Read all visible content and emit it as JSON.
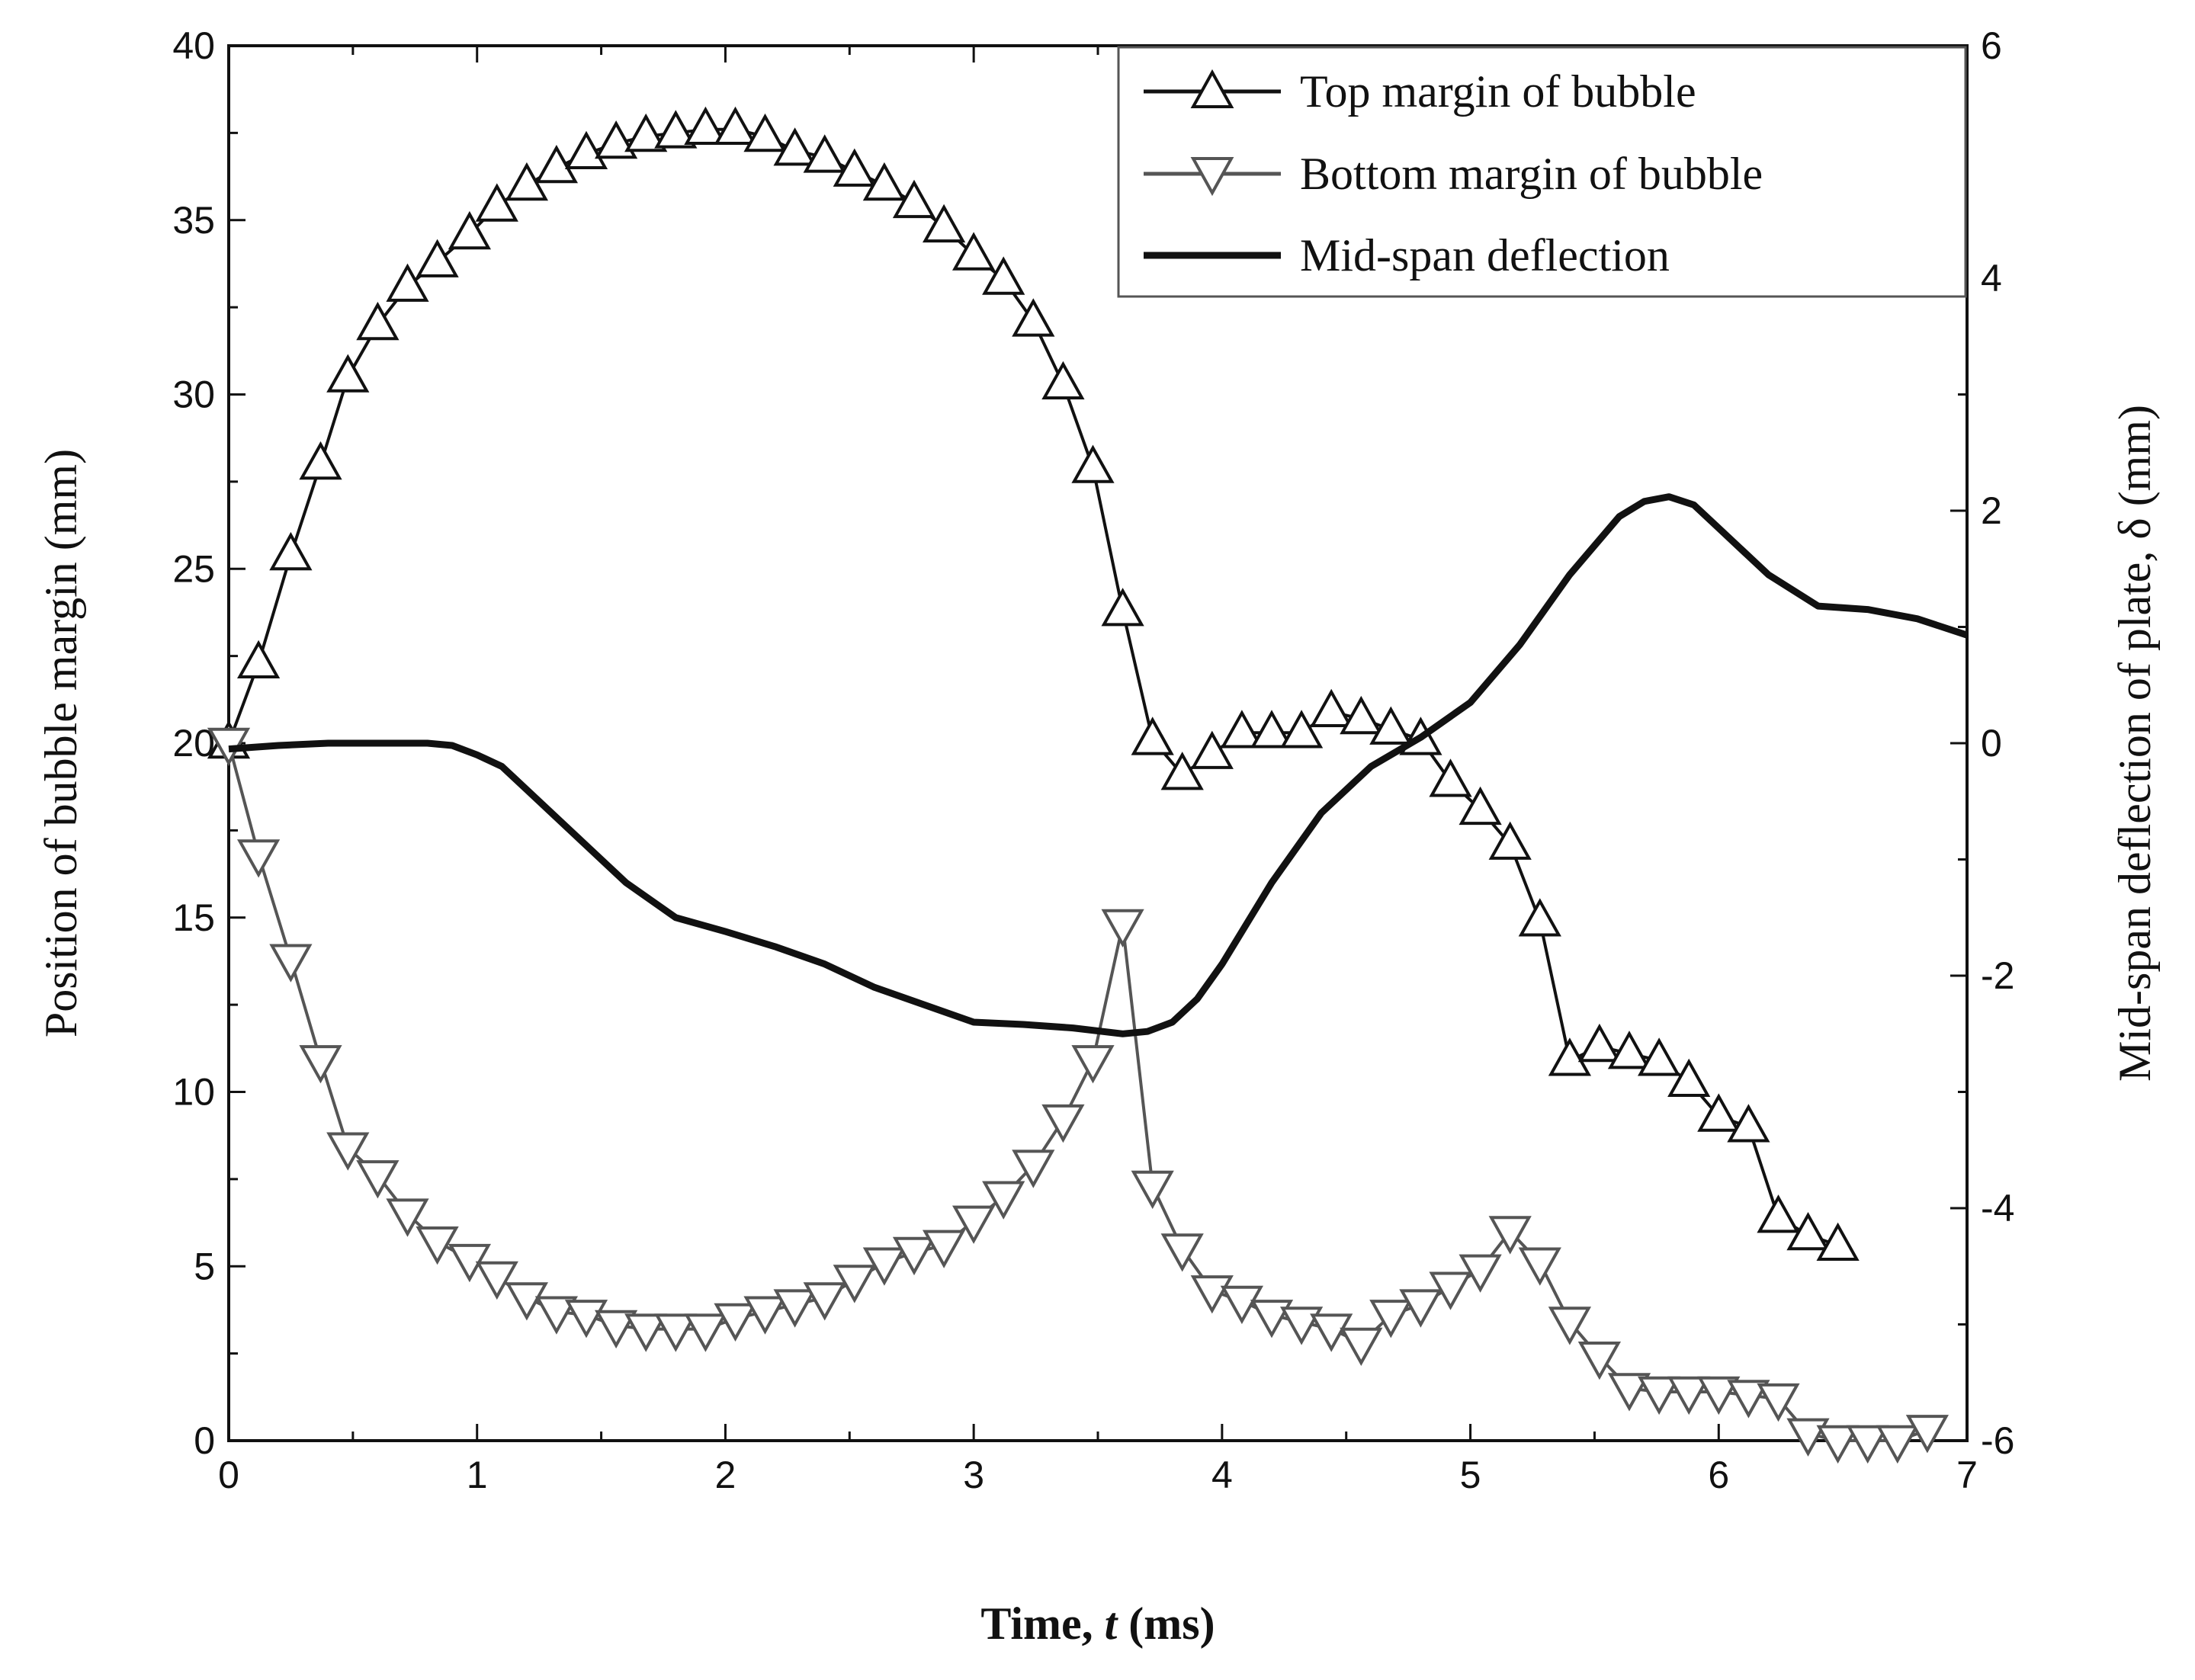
{
  "chart_data": {
    "type": "line",
    "title": "",
    "xlabel": {
      "prefix": "Time, ",
      "var": "t",
      "suffix": " (ms)"
    },
    "ylabel_left": "Position of bubble margin (mm)",
    "ylabel_right": "Mid-span deflection of plate, δ (mm)",
    "xlim": [
      0,
      7
    ],
    "ylim_left": [
      0,
      40
    ],
    "ylim_right": [
      -6,
      6
    ],
    "x_ticks": [
      "0",
      "1",
      "2",
      "3",
      "4",
      "5",
      "6",
      "7"
    ],
    "y_left_ticks": [
      "0",
      "5",
      "10",
      "15",
      "20",
      "25",
      "30",
      "35",
      "40"
    ],
    "y_right_ticks": [
      "-6",
      "-4",
      "-2",
      "0",
      "2",
      "4",
      "6"
    ],
    "grid": false,
    "legend_position": "top-right",
    "series": [
      {
        "name": "Top margin of bubble",
        "axis": "left",
        "marker": "triangle-up",
        "color": "#111111",
        "x": [
          0.0,
          0.12,
          0.25,
          0.37,
          0.48,
          0.6,
          0.72,
          0.84,
          0.97,
          1.08,
          1.2,
          1.32,
          1.44,
          1.56,
          1.68,
          1.8,
          1.92,
          2.04,
          2.16,
          2.28,
          2.4,
          2.52,
          2.64,
          2.76,
          2.88,
          3.0,
          3.12,
          3.24,
          3.36,
          3.48,
          3.6,
          3.72,
          3.84,
          3.96,
          4.08,
          4.2,
          4.32,
          4.44,
          4.56,
          4.68,
          4.8,
          4.92,
          5.04,
          5.16,
          5.28,
          5.4,
          5.52,
          5.64,
          5.76,
          5.88,
          6.0,
          6.12,
          6.24,
          6.36,
          6.48
        ],
        "values": [
          20.0,
          22.3,
          25.4,
          28.0,
          30.5,
          32.0,
          33.1,
          33.8,
          34.6,
          35.4,
          36.0,
          36.5,
          36.9,
          37.2,
          37.4,
          37.5,
          37.6,
          37.6,
          37.4,
          37.0,
          36.8,
          36.4,
          36.0,
          35.5,
          34.8,
          34.0,
          33.3,
          32.1,
          30.3,
          27.9,
          23.8,
          20.1,
          19.1,
          19.7,
          20.3,
          20.3,
          20.3,
          20.9,
          20.7,
          20.4,
          20.1,
          18.9,
          18.1,
          17.1,
          14.9,
          10.9,
          11.3,
          11.1,
          10.9,
          10.3,
          9.3,
          9.0,
          6.4,
          5.9,
          5.6
        ]
      },
      {
        "name": "Bottom margin of bubble",
        "axis": "left",
        "marker": "triangle-down",
        "color": "#555555",
        "x": [
          0.0,
          0.12,
          0.25,
          0.37,
          0.48,
          0.6,
          0.72,
          0.84,
          0.97,
          1.08,
          1.2,
          1.32,
          1.44,
          1.56,
          1.68,
          1.8,
          1.92,
          2.04,
          2.16,
          2.28,
          2.4,
          2.52,
          2.64,
          2.76,
          2.88,
          3.0,
          3.12,
          3.24,
          3.36,
          3.48,
          3.6,
          3.72,
          3.84,
          3.96,
          4.08,
          4.2,
          4.32,
          4.44,
          4.56,
          4.68,
          4.8,
          4.92,
          5.04,
          5.16,
          5.28,
          5.4,
          5.52,
          5.64,
          5.76,
          5.88,
          6.0,
          6.12,
          6.24,
          6.36,
          6.48,
          6.6,
          6.72,
          6.84
        ],
        "values": [
          20.0,
          16.8,
          13.8,
          10.9,
          8.4,
          7.6,
          6.5,
          5.7,
          5.2,
          4.7,
          4.1,
          3.7,
          3.6,
          3.3,
          3.2,
          3.2,
          3.2,
          3.5,
          3.7,
          3.9,
          4.1,
          4.6,
          5.1,
          5.4,
          5.6,
          6.3,
          7.0,
          7.9,
          9.2,
          10.9,
          14.8,
          7.3,
          5.5,
          4.3,
          4.0,
          3.6,
          3.4,
          3.2,
          2.8,
          3.6,
          3.9,
          4.4,
          4.9,
          6.0,
          5.1,
          3.4,
          2.4,
          1.5,
          1.4,
          1.4,
          1.4,
          1.3,
          1.2,
          0.2,
          0.0,
          0.0,
          0.0,
          0.3
        ]
      },
      {
        "name": "Mid-span deflection",
        "axis": "right",
        "marker": "none",
        "color": "#111111",
        "x": [
          0.0,
          0.2,
          0.4,
          0.6,
          0.8,
          0.9,
          1.0,
          1.1,
          1.2,
          1.4,
          1.6,
          1.8,
          2.0,
          2.2,
          2.4,
          2.6,
          2.8,
          3.0,
          3.2,
          3.4,
          3.6,
          3.7,
          3.8,
          3.9,
          4.0,
          4.2,
          4.4,
          4.6,
          4.8,
          5.0,
          5.2,
          5.4,
          5.6,
          5.7,
          5.8,
          5.9,
          6.0,
          6.2,
          6.4,
          6.6,
          6.8,
          7.0
        ],
        "values": [
          -0.05,
          -0.02,
          0.0,
          0.0,
          0.0,
          -0.02,
          -0.1,
          -0.2,
          -0.4,
          -0.8,
          -1.2,
          -1.5,
          -1.62,
          -1.75,
          -1.9,
          -2.1,
          -2.25,
          -2.4,
          -2.42,
          -2.45,
          -2.5,
          -2.48,
          -2.4,
          -2.2,
          -1.9,
          -1.2,
          -0.6,
          -0.2,
          0.05,
          0.35,
          0.85,
          1.45,
          1.95,
          2.08,
          2.12,
          2.05,
          1.85,
          1.45,
          1.18,
          1.15,
          1.07,
          0.93
        ]
      }
    ]
  }
}
